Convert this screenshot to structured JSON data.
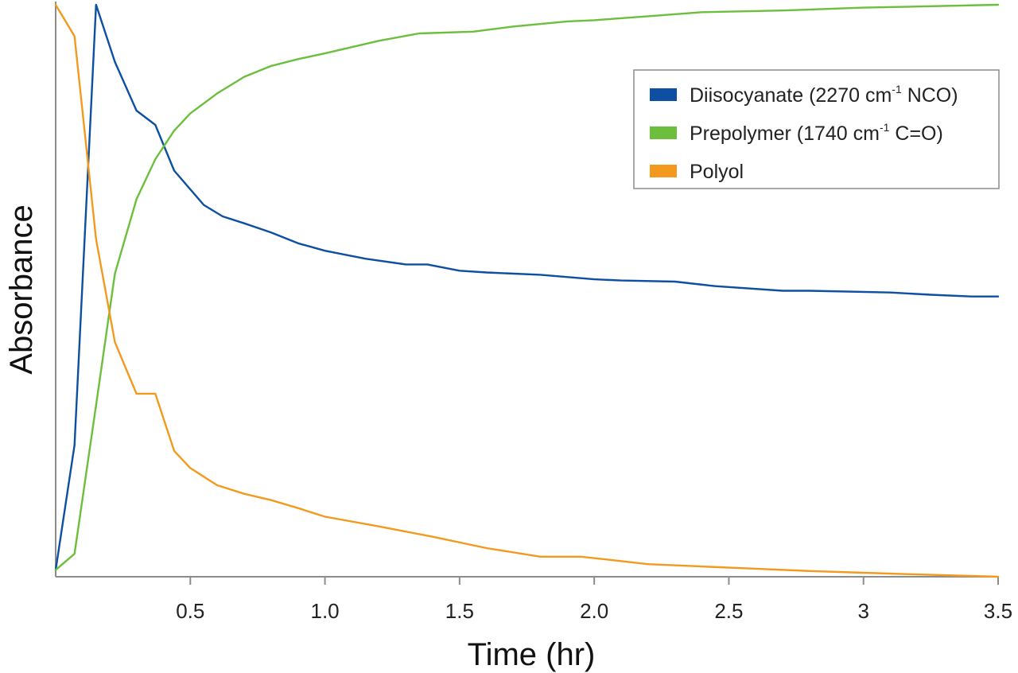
{
  "chart_data": {
    "type": "line",
    "xlabel": "Time (hr)",
    "ylabel": "Absorbance",
    "xlim": [
      0,
      3.5
    ],
    "ylim": [
      0,
      1
    ],
    "x_ticks": [
      0.5,
      1.0,
      1.5,
      2.0,
      2.5,
      3,
      3.5
    ],
    "x_tick_labels": [
      "0.5",
      "1.0",
      "1.5",
      "2.0",
      "2.5",
      "3",
      "3.5"
    ],
    "y_ticks_shown": false,
    "grid": false,
    "legend_position": "top-right",
    "series": [
      {
        "name": "Diisocyanate (2270 cm-1 NCO)",
        "legend_parts": {
          "main": "Diisocyanate (2270 cm",
          "sup": "-1",
          "tail": " NCO)"
        },
        "color": "#0d4fa3",
        "x": [
          0.0,
          0.07,
          0.15,
          0.22,
          0.3,
          0.37,
          0.44,
          0.55,
          0.62,
          0.7,
          0.8,
          0.9,
          1.0,
          1.15,
          1.3,
          1.38,
          1.5,
          1.6,
          1.8,
          2.0,
          2.1,
          2.3,
          2.45,
          2.7,
          2.8,
          3.1,
          3.25,
          3.4,
          3.5
        ],
        "y": [
          0.012,
          0.23,
          1.0,
          0.9,
          0.815,
          0.79,
          0.71,
          0.65,
          0.63,
          0.618,
          0.602,
          0.583,
          0.57,
          0.556,
          0.546,
          0.546,
          0.535,
          0.532,
          0.528,
          0.52,
          0.518,
          0.516,
          0.508,
          0.5,
          0.5,
          0.497,
          0.493,
          0.49,
          0.49
        ]
      },
      {
        "name": "Prepolymer (1740 cm-1 C=O)",
        "legend_parts": {
          "main": "Prepolymer (1740 cm",
          "sup": "-1",
          "tail": " C=O)"
        },
        "color": "#6cbf3c",
        "x": [
          0.0,
          0.07,
          0.15,
          0.22,
          0.3,
          0.37,
          0.44,
          0.5,
          0.6,
          0.7,
          0.8,
          0.9,
          1.0,
          1.2,
          1.35,
          1.55,
          1.7,
          1.9,
          2.0,
          2.2,
          2.4,
          2.7,
          3.0,
          3.2,
          3.5
        ],
        "y": [
          0.012,
          0.04,
          0.3,
          0.53,
          0.66,
          0.73,
          0.78,
          0.81,
          0.845,
          0.874,
          0.893,
          0.905,
          0.915,
          0.937,
          0.95,
          0.953,
          0.962,
          0.971,
          0.973,
          0.98,
          0.987,
          0.99,
          0.995,
          0.997,
          1.0
        ]
      },
      {
        "name": "Polyol",
        "legend_parts": {
          "main": "Polyol",
          "sup": "",
          "tail": ""
        },
        "color": "#f39a1e",
        "x": [
          0.0,
          0.07,
          0.15,
          0.22,
          0.3,
          0.37,
          0.44,
          0.5,
          0.6,
          0.7,
          0.8,
          0.9,
          1.0,
          1.2,
          1.4,
          1.6,
          1.8,
          1.95,
          2.05,
          2.2,
          2.4,
          2.6,
          2.8,
          3.0,
          3.2,
          3.5
        ],
        "y": [
          1.0,
          0.945,
          0.59,
          0.41,
          0.32,
          0.32,
          0.22,
          0.19,
          0.16,
          0.145,
          0.134,
          0.12,
          0.105,
          0.088,
          0.07,
          0.05,
          0.035,
          0.035,
          0.03,
          0.022,
          0.018,
          0.014,
          0.01,
          0.007,
          0.004,
          0.0
        ]
      }
    ]
  }
}
